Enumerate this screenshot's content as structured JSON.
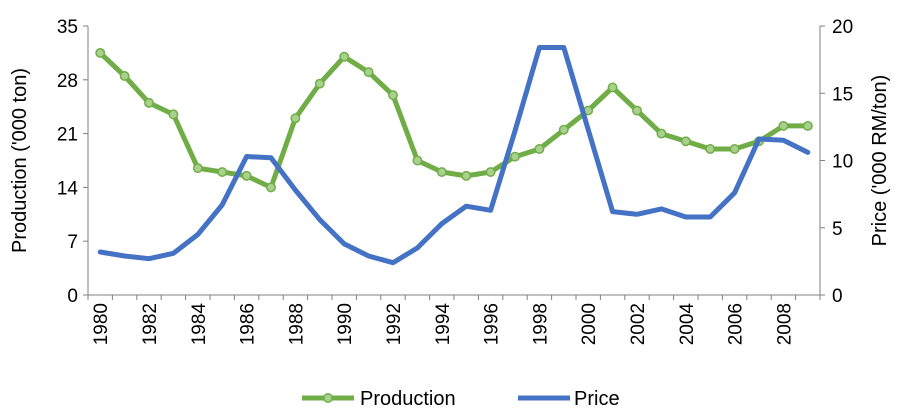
{
  "chart_data": {
    "type": "line",
    "x": [
      1980,
      1981,
      1982,
      1983,
      1984,
      1985,
      1986,
      1987,
      1988,
      1989,
      1990,
      1991,
      1992,
      1993,
      1994,
      1995,
      1996,
      1997,
      1998,
      1999,
      2000,
      2001,
      2002,
      2003,
      2004,
      2005,
      2006,
      2007,
      2008,
      2009
    ],
    "x_tick_labels": [
      "1980",
      "1982",
      "1984",
      "1986",
      "1988",
      "1990",
      "1992",
      "1994",
      "1996",
      "1998",
      "2000",
      "2002",
      "2004",
      "2006",
      "2008"
    ],
    "series": [
      {
        "name": "Production",
        "axis": "left",
        "color": "#70ad47",
        "marker": "circle",
        "values": [
          31.5,
          28.5,
          25,
          23.5,
          16.5,
          16,
          15.5,
          14,
          23,
          27.5,
          31,
          29,
          26,
          17.5,
          16,
          15.5,
          16,
          18,
          19,
          21.5,
          24,
          27,
          24,
          21,
          20,
          19,
          19,
          20,
          22,
          22
        ]
      },
      {
        "name": "Price",
        "axis": "right",
        "color": "#4472c4",
        "marker": "none",
        "values": [
          3.2,
          2.9,
          2.7,
          3.1,
          4.5,
          6.7,
          10.3,
          10.2,
          7.8,
          5.6,
          3.8,
          2.9,
          2.4,
          3.5,
          5.3,
          6.6,
          6.3,
          12.2,
          18.4,
          18.4,
          12.3,
          6.2,
          6.0,
          6.4,
          5.8,
          5.8,
          7.6,
          11.6,
          11.5,
          10.6
        ]
      }
    ],
    "y_left": {
      "label": "Production ('000 ton)",
      "range": [
        0,
        35
      ],
      "ticks": [
        "0",
        "7",
        "14",
        "21",
        "28",
        "35"
      ]
    },
    "y_right": {
      "label": "Price ('000 RM/ton)",
      "range": [
        0,
        20
      ],
      "ticks": [
        "0",
        "5",
        "10",
        "15",
        "20"
      ]
    },
    "legend": {
      "position": "bottom",
      "items": [
        "Production",
        "Price"
      ]
    },
    "grid": false
  }
}
